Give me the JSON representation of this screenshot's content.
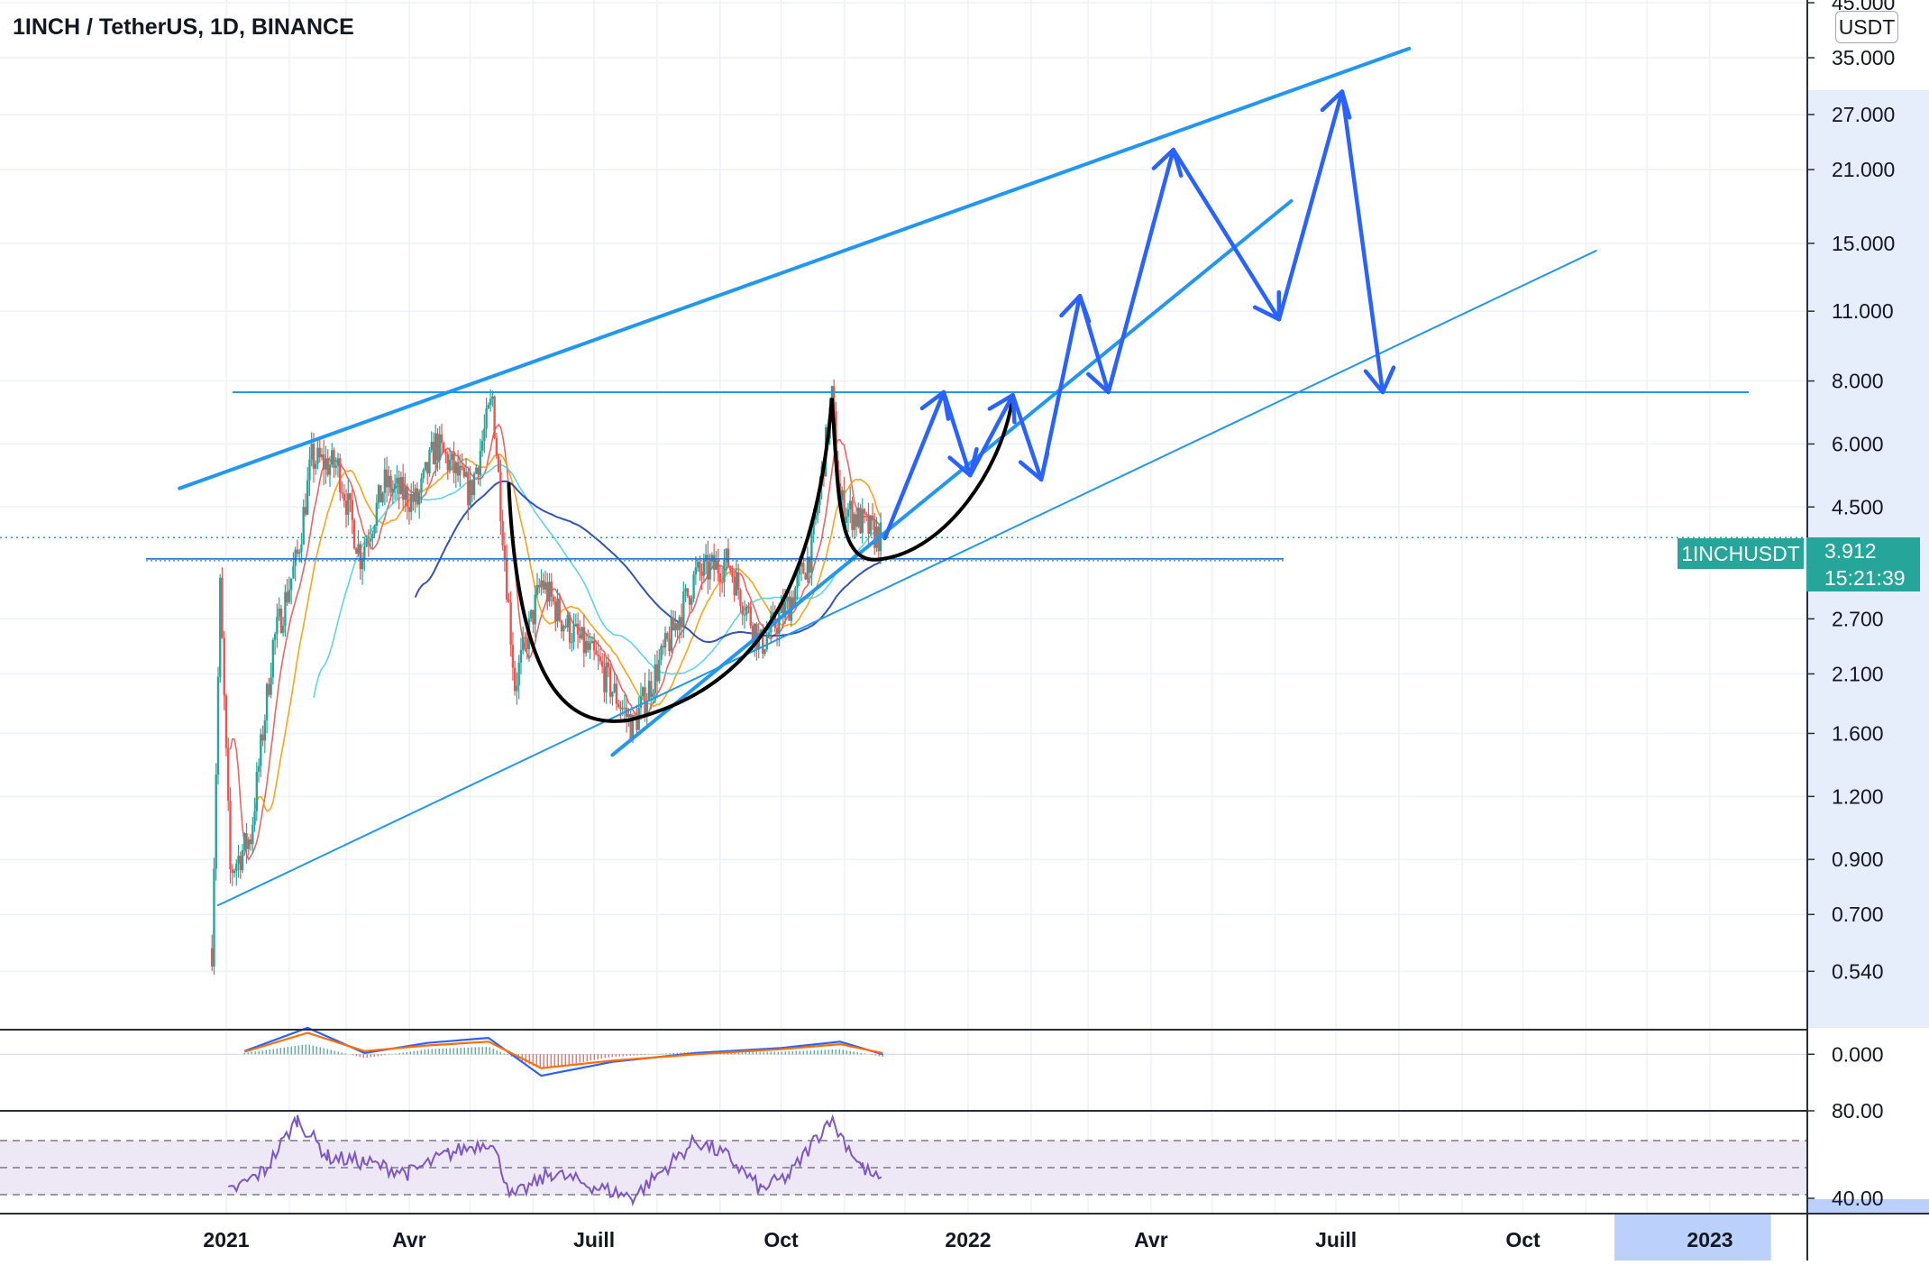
{
  "header": {
    "title": "1INCH / TetherUS, 1D, BINANCE"
  },
  "price_scale": {
    "unit": "USDT",
    "ticks": [
      "45.000",
      "35.000",
      "27.000",
      "21.000",
      "15.000",
      "11.000",
      "8.000",
      "6.000",
      "4.500",
      "2.700",
      "2.100",
      "1.600",
      "1.200",
      "0.900",
      "0.700",
      "0.540"
    ]
  },
  "macd_scale": {
    "ticks": [
      "0.000"
    ]
  },
  "rsi_scale": {
    "ticks": [
      "80.00",
      "40.00"
    ]
  },
  "time_axis": {
    "labels": [
      "2021",
      "Avr",
      "Juill",
      "Oct",
      "2022",
      "Avr",
      "Juill",
      "Oct",
      "2023"
    ]
  },
  "last_price": {
    "symbol": "1INCHUSDT",
    "price": "3.912",
    "countdown": "15:21:39"
  },
  "colors": {
    "up": "#26a69a",
    "down": "#ef5350",
    "drawing": "#2962ff",
    "trendline": "#2196f3",
    "cup_curve": "#000000",
    "macd_line": "#2962ff",
    "macd_signal": "#ff6d00",
    "rsi_line": "#7e57c2",
    "rsi_band": "#ede7f6",
    "time_highlight": "#bbd0fb"
  },
  "chart_data": [
    {
      "type": "candlestick",
      "title": "1INCH / TetherUS, 1D, BINANCE",
      "scale": "log",
      "ylim": [
        0.47,
        45
      ],
      "x_range": [
        "2020-12-01",
        "2023-01-31"
      ],
      "series": [
        {
          "name": "1INCHUSDT",
          "ohlc_path": [
            [
              "2020-12-25",
              0.6
            ],
            [
              "2020-12-29",
              3.1
            ],
            [
              "2021-01-03",
              0.85
            ],
            [
              "2021-01-13",
              1.0
            ],
            [
              "2021-01-24",
              2.4
            ],
            [
              "2021-02-05",
              3.6
            ],
            [
              "2021-02-12",
              5.6
            ],
            [
              "2021-02-25",
              5.4
            ],
            [
              "2021-03-08",
              3.6
            ],
            [
              "2021-03-20",
              5.0
            ],
            [
              "2021-04-05",
              4.6
            ],
            [
              "2021-04-14",
              6.0
            ],
            [
              "2021-05-01",
              4.8
            ],
            [
              "2021-05-12",
              7.4
            ],
            [
              "2021-05-19",
              3.2
            ],
            [
              "2021-05-23",
              2.0
            ],
            [
              "2021-06-05",
              3.2
            ],
            [
              "2021-06-15",
              2.7
            ],
            [
              "2021-07-03",
              2.2
            ],
            [
              "2021-07-20",
              1.65
            ],
            [
              "2021-08-06",
              2.4
            ],
            [
              "2021-08-20",
              3.3
            ],
            [
              "2021-09-05",
              3.5
            ],
            [
              "2021-09-21",
              2.4
            ],
            [
              "2021-10-05",
              2.9
            ],
            [
              "2021-10-16",
              3.7
            ],
            [
              "2021-10-26",
              7.4
            ],
            [
              "2021-10-30",
              4.6
            ],
            [
              "2021-11-15",
              4.0
            ],
            [
              "2021-11-20",
              3.9
            ]
          ]
        }
      ],
      "moving_average_colors": [
        "#ef5350",
        "#ff9800",
        "#4dd0e1",
        "#1e40af"
      ],
      "annotations": {
        "upper_channel": [
          [
            "2020-12-09",
            4.9
          ],
          [
            "2022-08-06",
            36.5
          ]
        ],
        "mid_trend": [
          [
            "2021-07-10",
            1.45
          ],
          [
            "2022-06-09",
            18.2
          ]
        ],
        "lower_trend": [
          [
            "2020-12-28",
            0.73
          ],
          [
            "2022-11-06",
            14.5
          ]
        ],
        "resistance_level": 7.6,
        "support_level": 3.55,
        "cup_and_handle": [
          [
            "2021-05-20",
            5.0
          ],
          [
            "2021-07-18",
            1.7
          ],
          [
            "2021-09-25",
            2.2
          ],
          [
            "2021-10-26",
            7.4
          ],
          [
            "2021-11-20",
            3.55
          ],
          [
            "2022-01-23",
            7.5
          ]
        ],
        "projection_path": [
          [
            "2021-11-21",
            3.9
          ],
          [
            "2021-12-20",
            7.6
          ],
          [
            "2022-01-02",
            5.2
          ],
          [
            "2022-01-23",
            7.5
          ],
          [
            "2022-02-06",
            5.1
          ],
          [
            "2022-02-25",
            11.8
          ],
          [
            "2022-03-11",
            7.6
          ],
          [
            "2022-04-12",
            23.0
          ],
          [
            "2022-06-03",
            10.6
          ],
          [
            "2022-07-04",
            30.0
          ],
          [
            "2022-07-24",
            7.6
          ]
        ]
      }
    },
    {
      "type": "line",
      "title": "MACD",
      "ylim": [
        -0.5,
        0.6
      ],
      "series": [
        {
          "name": "",
          "x": [
            "2021-01-10",
            "2021-02-10",
            "2021-03-10",
            "2021-04-10",
            "2021-05-10",
            "2021-06-05",
            "2021-07-10",
            "2021-08-20",
            "2021-10-01",
            "2021-10-30",
            "2021-11-20"
          ],
          "values": [
            0.05,
            0.42,
            0.02,
            0.18,
            0.26,
            -0.34,
            -0.12,
            0.02,
            0.1,
            0.2,
            0.0
          ]
        },
        {
          "name": "",
          "x": [
            "2021-01-10",
            "2021-02-10",
            "2021-03-10",
            "2021-04-10",
            "2021-05-10",
            "2021-06-05",
            "2021-07-10",
            "2021-08-20",
            "2021-10-01",
            "2021-10-30",
            "2021-11-20"
          ],
          "values": [
            0.04,
            0.34,
            0.05,
            0.14,
            0.2,
            -0.22,
            -0.1,
            0.0,
            0.08,
            0.16,
            0.02
          ]
        }
      ]
    },
    {
      "type": "line",
      "title": "RSI",
      "ylim": [
        20,
        92
      ],
      "bands": [
        30,
        70
      ],
      "series": [
        {
          "name": "",
          "x": [
            "2021-01-02",
            "2021-01-20",
            "2021-02-05",
            "2021-02-20",
            "2021-03-10",
            "2021-04-01",
            "2021-04-20",
            "2021-05-11",
            "2021-05-22",
            "2021-06-10",
            "2021-07-01",
            "2021-07-20",
            "2021-08-20",
            "2021-09-05",
            "2021-09-21",
            "2021-10-05",
            "2021-10-25",
            "2021-11-10",
            "2021-11-20"
          ],
          "values": [
            31,
            48,
            86,
            58,
            54,
            46,
            60,
            70,
            28,
            46,
            36,
            28,
            70,
            58,
            34,
            44,
            86,
            50,
            38
          ]
        }
      ]
    }
  ]
}
